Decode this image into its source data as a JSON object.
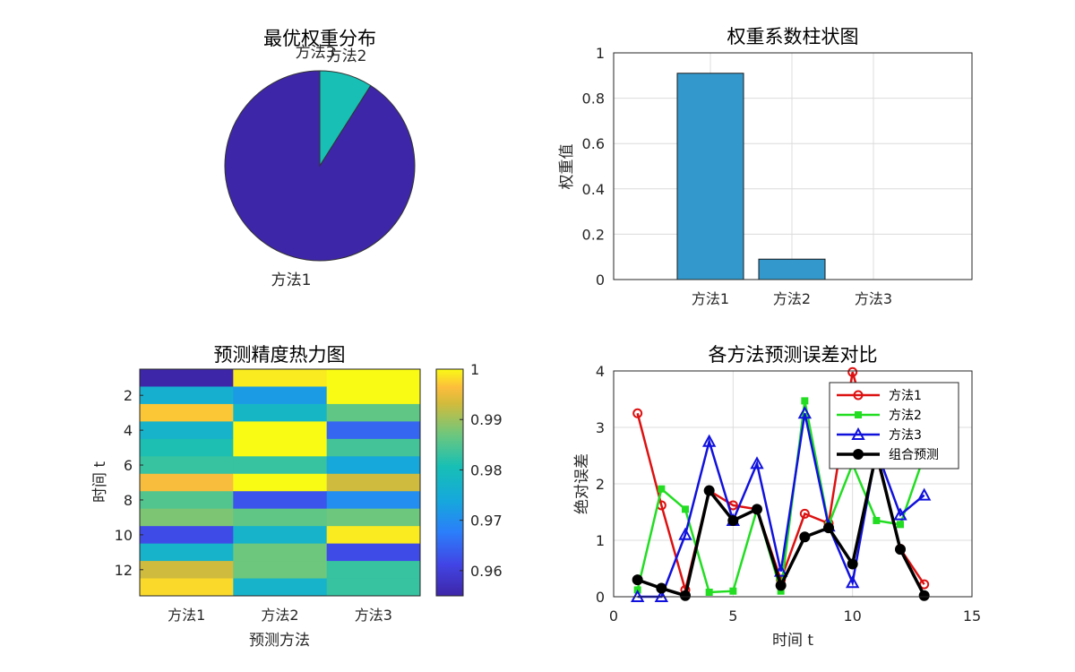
{
  "chart_data": [
    {
      "type": "pie",
      "title": "最优权重分布",
      "labels": [
        "方法1",
        "方法2",
        "方法3"
      ],
      "values": [
        0.91,
        0.09,
        0.0
      ],
      "colors": [
        "#3e26a8",
        "#17bfb5",
        "#f9fb15"
      ]
    },
    {
      "type": "bar",
      "title": "权重系数柱状图",
      "categories": [
        "方法1",
        "方法2",
        "方法3"
      ],
      "values": [
        0.91,
        0.09,
        0.0
      ],
      "ylabel": "权重值",
      "xlabel": "",
      "ylim": [
        0,
        1
      ],
      "yticks": [
        0,
        0.2,
        0.4,
        0.6,
        0.8,
        1
      ],
      "ytick_labels": [
        "0",
        "0.2",
        "0.4",
        "0.6",
        "0.8",
        "1"
      ],
      "grid": true,
      "color": "#3399cc"
    },
    {
      "type": "heatmap",
      "title": "预测精度热力图",
      "xlabel": "预测方法",
      "ylabel": "时间 t",
      "columns": [
        "方法1",
        "方法2",
        "方法3"
      ],
      "row_ticks": [
        2,
        4,
        6,
        8,
        10,
        12
      ],
      "rows": 13,
      "values": [
        [
          0.955,
          0.999,
          1.0
        ],
        [
          0.976,
          0.972,
          1.0
        ],
        [
          0.997,
          0.978,
          0.986
        ],
        [
          0.977,
          1.0,
          0.965
        ],
        [
          0.981,
          1.0,
          0.984
        ],
        [
          0.983,
          0.983,
          0.974
        ],
        [
          0.996,
          1.0,
          0.993
        ],
        [
          0.985,
          0.963,
          0.97
        ],
        [
          0.988,
          0.986,
          0.987
        ],
        [
          0.962,
          0.977,
          0.999
        ],
        [
          0.977,
          0.987,
          0.962
        ],
        [
          0.993,
          0.987,
          0.983
        ],
        [
          0.998,
          0.977,
          0.983
        ]
      ],
      "colorbar": {
        "range": [
          0.955,
          1.0
        ],
        "ticks": [
          0.96,
          0.97,
          0.98,
          0.99,
          1
        ],
        "tick_labels": [
          "0.96",
          "0.97",
          "0.98",
          "0.99",
          "1"
        ]
      }
    },
    {
      "type": "line",
      "title": "各方法预测误差对比",
      "xlabel": "时间 t",
      "ylabel": "绝对误差",
      "xlim": [
        0,
        15
      ],
      "ylim": [
        0,
        4
      ],
      "xticks": [
        0,
        5,
        10,
        15
      ],
      "yticks": [
        0,
        1,
        2,
        3,
        4
      ],
      "grid": true,
      "legend_position": "top-right",
      "x": [
        1,
        2,
        3,
        4,
        5,
        6,
        7,
        8,
        9,
        10,
        11,
        12,
        13
      ],
      "series": [
        {
          "name": "方法1",
          "color": "#dd1111",
          "marker": "circle-open",
          "values": [
            3.25,
            1.62,
            0.12,
            1.88,
            1.62,
            1.55,
            0.3,
            1.47,
            1.3,
            3.98,
            2.5,
            0.85,
            0.22
          ]
        },
        {
          "name": "方法2",
          "color": "#22dd22",
          "marker": "square",
          "values": [
            0.12,
            1.91,
            1.55,
            0.08,
            0.1,
            1.55,
            0.1,
            3.47,
            1.28,
            2.35,
            1.35,
            1.28,
            2.5
          ]
        },
        {
          "name": "方法3",
          "color": "#1111dd",
          "marker": "triangle-open",
          "values": [
            0.0,
            0.0,
            1.1,
            2.75,
            1.35,
            2.36,
            0.45,
            3.25,
            1.25,
            0.25,
            2.6,
            1.45,
            1.8
          ]
        },
        {
          "name": "组合预测",
          "color": "#000000",
          "marker": "circle-filled",
          "values": [
            0.3,
            0.15,
            0.02,
            1.88,
            1.35,
            1.55,
            0.2,
            1.06,
            1.22,
            0.58,
            2.55,
            0.84,
            0.02
          ]
        }
      ]
    }
  ]
}
